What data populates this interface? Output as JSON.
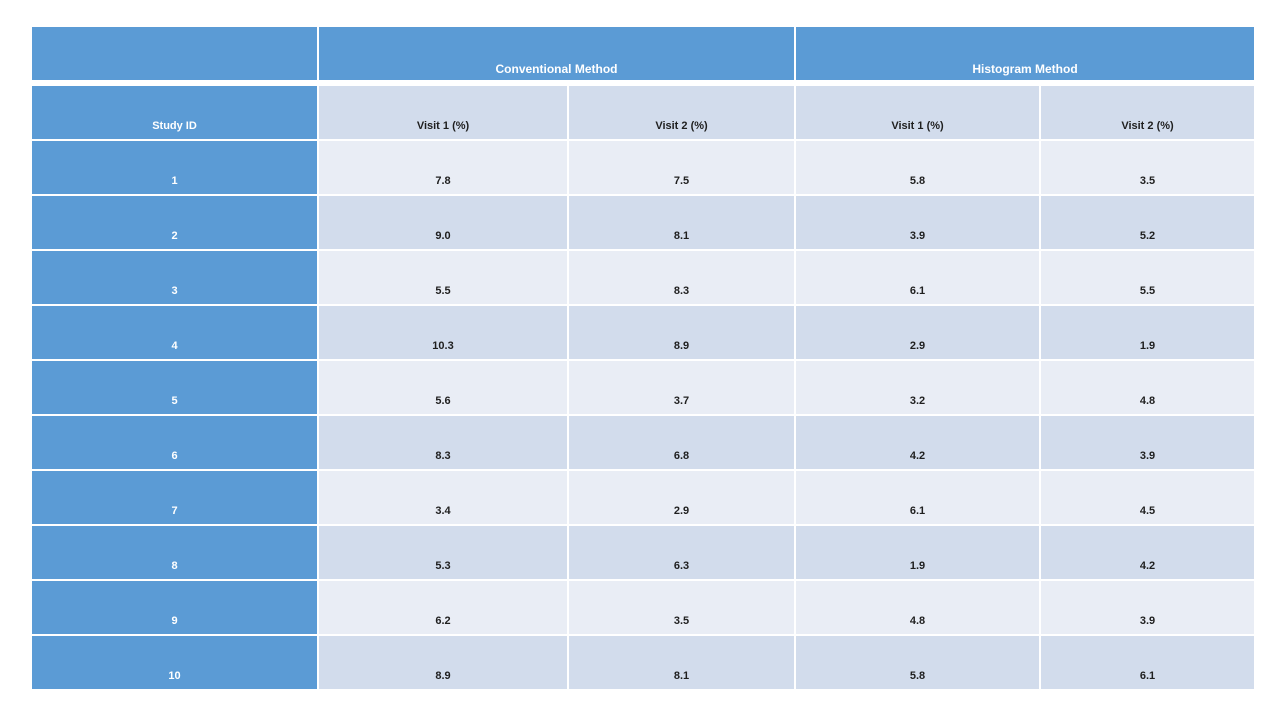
{
  "table": {
    "header_groups": [
      {
        "label": "Conventional Method",
        "span": 2
      },
      {
        "label": "Histogram Method",
        "span": 2
      }
    ],
    "corner_label": "",
    "columns": [
      "Study ID",
      "Visit 1 (%)",
      "Visit 2 (%)",
      "Visit 1 (%)",
      "Visit 2 (%)"
    ],
    "rows": [
      {
        "study_id": "1",
        "values": [
          "7.8",
          "7.5",
          "5.8",
          "3.5"
        ]
      },
      {
        "study_id": "2",
        "values": [
          "9.0",
          "8.1",
          "3.9",
          "5.2"
        ]
      },
      {
        "study_id": "3",
        "values": [
          "5.5",
          "8.3",
          "6.1",
          "5.5"
        ]
      },
      {
        "study_id": "4",
        "values": [
          "10.3",
          "8.9",
          "2.9",
          "1.9"
        ]
      },
      {
        "study_id": "5",
        "values": [
          "5.6",
          "3.7",
          "3.2",
          "4.8"
        ]
      },
      {
        "study_id": "6",
        "values": [
          "8.3",
          "6.8",
          "4.2",
          "3.9"
        ]
      },
      {
        "study_id": "7",
        "values": [
          "3.4",
          "2.9",
          "6.1",
          "4.5"
        ]
      },
      {
        "study_id": "8",
        "values": [
          "5.3",
          "6.3",
          "1.9",
          "4.2"
        ]
      },
      {
        "study_id": "9",
        "values": [
          "6.2",
          "3.5",
          "4.8",
          "3.9"
        ]
      },
      {
        "study_id": "10",
        "values": [
          "8.9",
          "8.1",
          "5.8",
          "6.1"
        ]
      }
    ]
  },
  "colors": {
    "header_blue": "#5b9bd5",
    "band_light": "#e9edf5",
    "band_dark": "#d2dcec",
    "text_dark": "#1f1f1f",
    "border_white": "#ffffff",
    "page_background": "#ffffff"
  }
}
